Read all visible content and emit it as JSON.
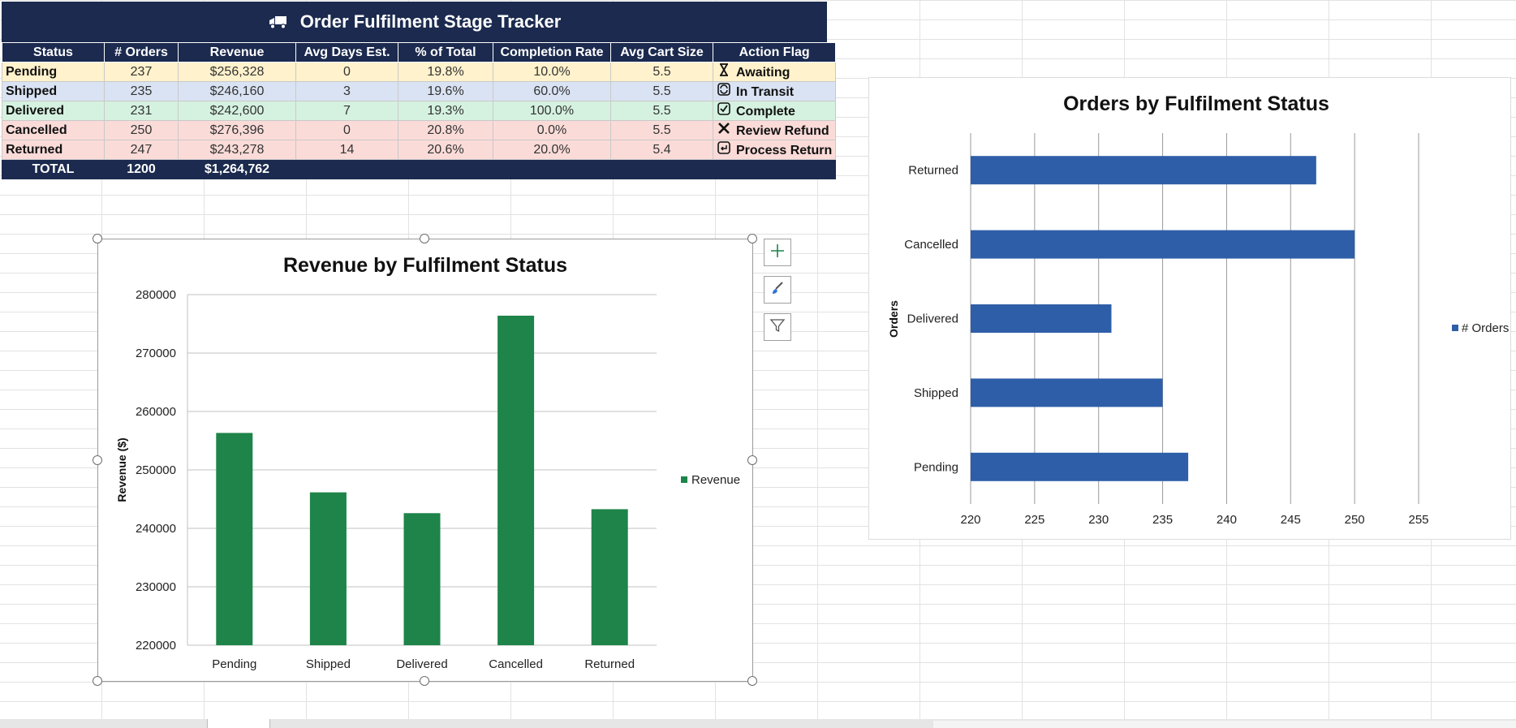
{
  "sheet": {
    "title": "Order Fulfilment Stage Tracker",
    "title_icon": "truck-icon",
    "columns": [
      "Status",
      "# Orders",
      "Revenue",
      "Avg Days Est.",
      "% of Total",
      "Completion Rate",
      "Avg Cart Size",
      "Action Flag"
    ],
    "rows": [
      {
        "status": "Pending",
        "orders": "237",
        "revenue": "$256,328",
        "days": "0",
        "pct": "19.8%",
        "completion": "10.0%",
        "cart": "5.5",
        "flag": "Awaiting",
        "flag_icon": "hourglass-icon",
        "color": "#fff2cc"
      },
      {
        "status": "Shipped",
        "orders": "235",
        "revenue": "$246,160",
        "days": "3",
        "pct": "19.6%",
        "completion": "60.0%",
        "cart": "5.5",
        "flag": "In Transit",
        "flag_icon": "refresh-icon",
        "color": "#dae3f3"
      },
      {
        "status": "Delivered",
        "orders": "231",
        "revenue": "$242,600",
        "days": "7",
        "pct": "19.3%",
        "completion": "100.0%",
        "cart": "5.5",
        "flag": "Complete",
        "flag_icon": "checkbox-icon",
        "color": "#d5f2e0"
      },
      {
        "status": "Cancelled",
        "orders": "250",
        "revenue": "$276,396",
        "days": "0",
        "pct": "20.8%",
        "completion": "0.0%",
        "cart": "5.5",
        "flag": "Review Refund",
        "flag_icon": "x-icon",
        "color": "#fadbd8"
      },
      {
        "status": "Returned",
        "orders": "247",
        "revenue": "$243,278",
        "days": "14",
        "pct": "20.6%",
        "completion": "20.0%",
        "cart": "5.4",
        "flag": "Process Return",
        "flag_icon": "return-icon",
        "color": "#fadbd8"
      }
    ],
    "total": {
      "label": "TOTAL",
      "orders": "1200",
      "revenue": "$1,264,762"
    }
  },
  "colors": {
    "header": "#1b2a4e",
    "revenue_bar": "#1e8449",
    "orders_bar": "#2e5ea8"
  },
  "chart_data": [
    {
      "type": "bar",
      "title": "Revenue by Fulfilment Status",
      "categories": [
        "Pending",
        "Shipped",
        "Delivered",
        "Cancelled",
        "Returned"
      ],
      "series": [
        {
          "name": "Revenue",
          "values": [
            256328,
            246160,
            242600,
            276396,
            243278
          ]
        }
      ],
      "xlabel": "",
      "ylabel": "Revenue ($)",
      "ylim": [
        220000,
        280000
      ],
      "yticks": [
        "220000",
        "230000",
        "240000",
        "250000",
        "260000",
        "270000",
        "280000"
      ],
      "grid": true,
      "legend": "right"
    },
    {
      "type": "bar",
      "orientation": "horizontal",
      "title": "Orders by Fulfilment Status",
      "categories": [
        "Pending",
        "Shipped",
        "Delivered",
        "Cancelled",
        "Returned"
      ],
      "series": [
        {
          "name": "# Orders",
          "values": [
            237,
            235,
            231,
            250,
            247
          ]
        }
      ],
      "xlabel": "",
      "ylabel": "Orders",
      "xlim": [
        220,
        255
      ],
      "xticks": [
        "220",
        "225",
        "230",
        "235",
        "240",
        "245",
        "250",
        "255"
      ],
      "grid": true,
      "legend": "right"
    }
  ],
  "chart_tools": {
    "add_icon": "plus-icon",
    "style_icon": "brush-icon",
    "filter_icon": "filter-icon"
  }
}
